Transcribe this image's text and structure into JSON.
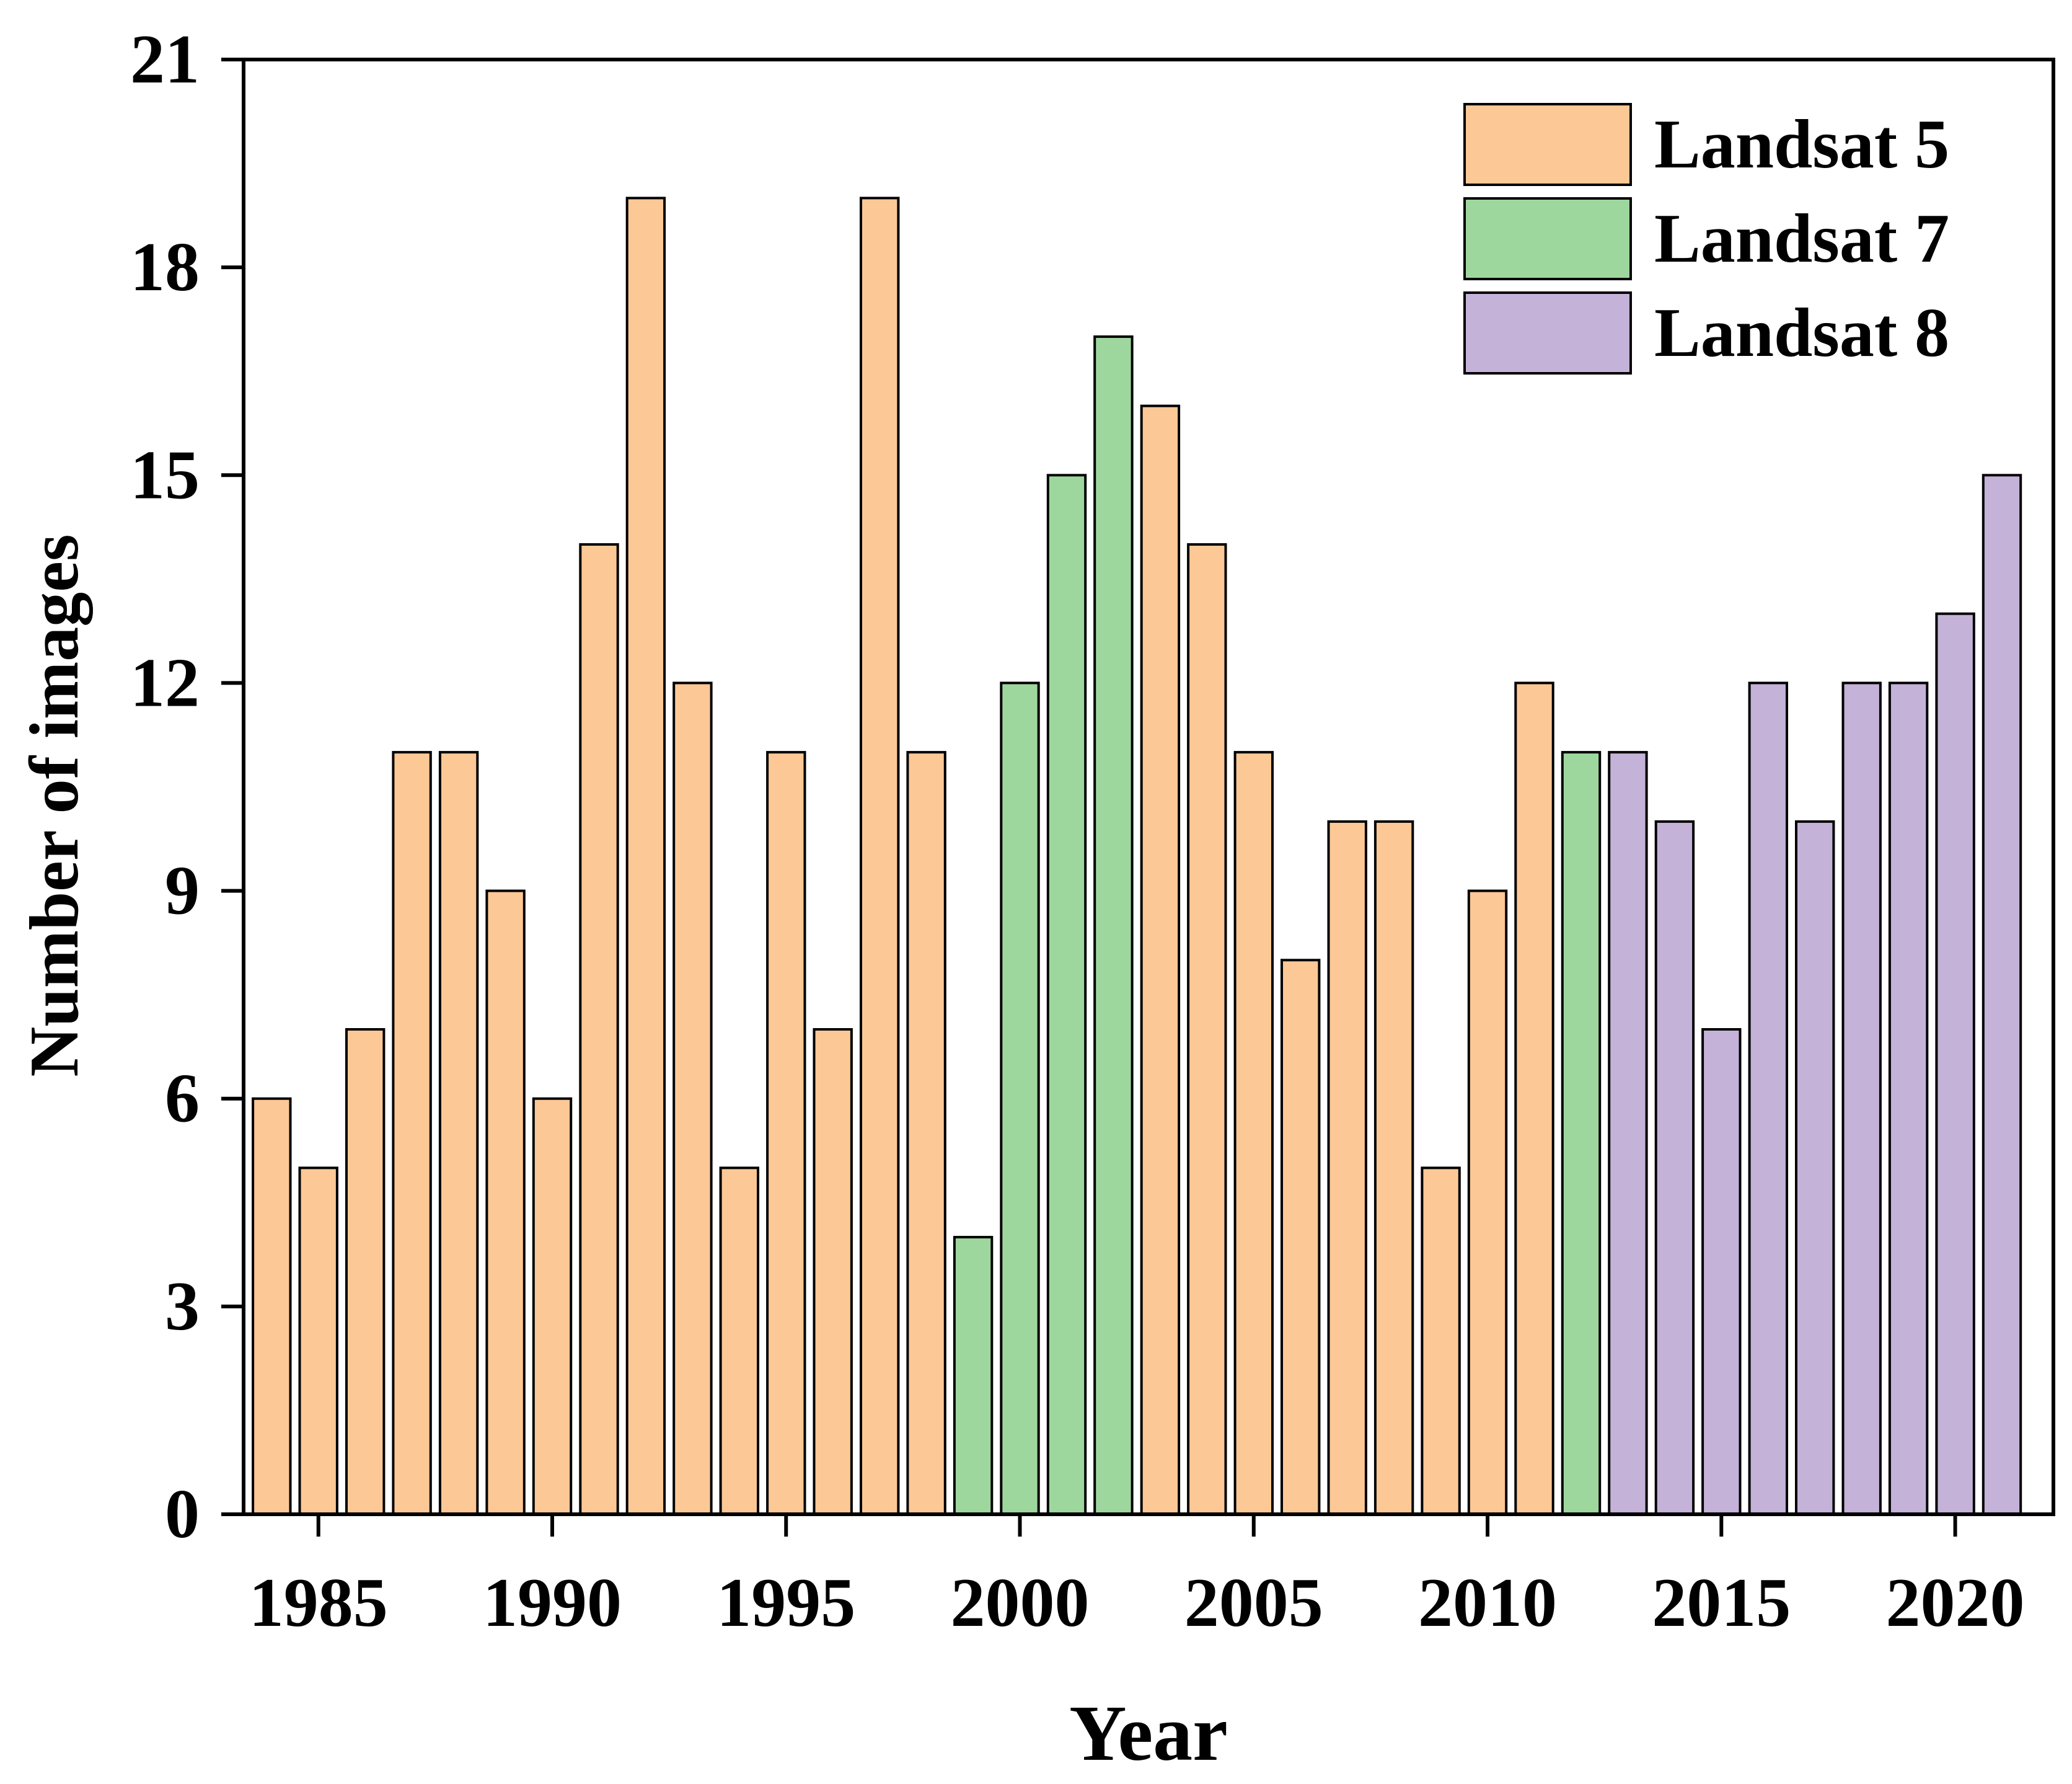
{
  "chart_data": {
    "type": "bar",
    "xlabel": "Year",
    "ylabel": "Number of images",
    "ylim": [
      0,
      21
    ],
    "xlim": [
      1983.4,
      2022.1
    ],
    "x_ticks": [
      1985,
      1990,
      1995,
      2000,
      2005,
      2010,
      2015,
      2020
    ],
    "y_ticks": [
      0,
      3,
      6,
      9,
      12,
      15,
      18,
      21
    ],
    "grid": false,
    "legend_position": "top-right",
    "series": [
      {
        "name": "Landsat 5",
        "color": "#FCC896",
        "x": [
          1984,
          1985,
          1986,
          1987,
          1988,
          1989,
          1990,
          1991,
          1992,
          1993,
          1994,
          1995,
          1996,
          1997,
          1998,
          2003,
          2004,
          2005,
          2006,
          2007,
          2008,
          2009,
          2010,
          2011
        ],
        "values": [
          6,
          5,
          7,
          11,
          11,
          9,
          6,
          14,
          19,
          12,
          5,
          11,
          7,
          19,
          11,
          16,
          14,
          11,
          8,
          10,
          10,
          5,
          9,
          12
        ]
      },
      {
        "name": "Landsat 7",
        "color": "#9ED79E",
        "x": [
          1999,
          2000,
          2001,
          2002,
          2012
        ],
        "values": [
          4,
          12,
          15,
          17,
          11
        ]
      },
      {
        "name": "Landsat 8",
        "color": "#C4B2D8",
        "x": [
          2013,
          2014,
          2015,
          2016,
          2017,
          2018,
          2019,
          2020,
          2021
        ],
        "values": [
          11,
          10,
          7,
          12,
          10,
          12,
          12,
          13,
          15
        ]
      }
    ]
  }
}
